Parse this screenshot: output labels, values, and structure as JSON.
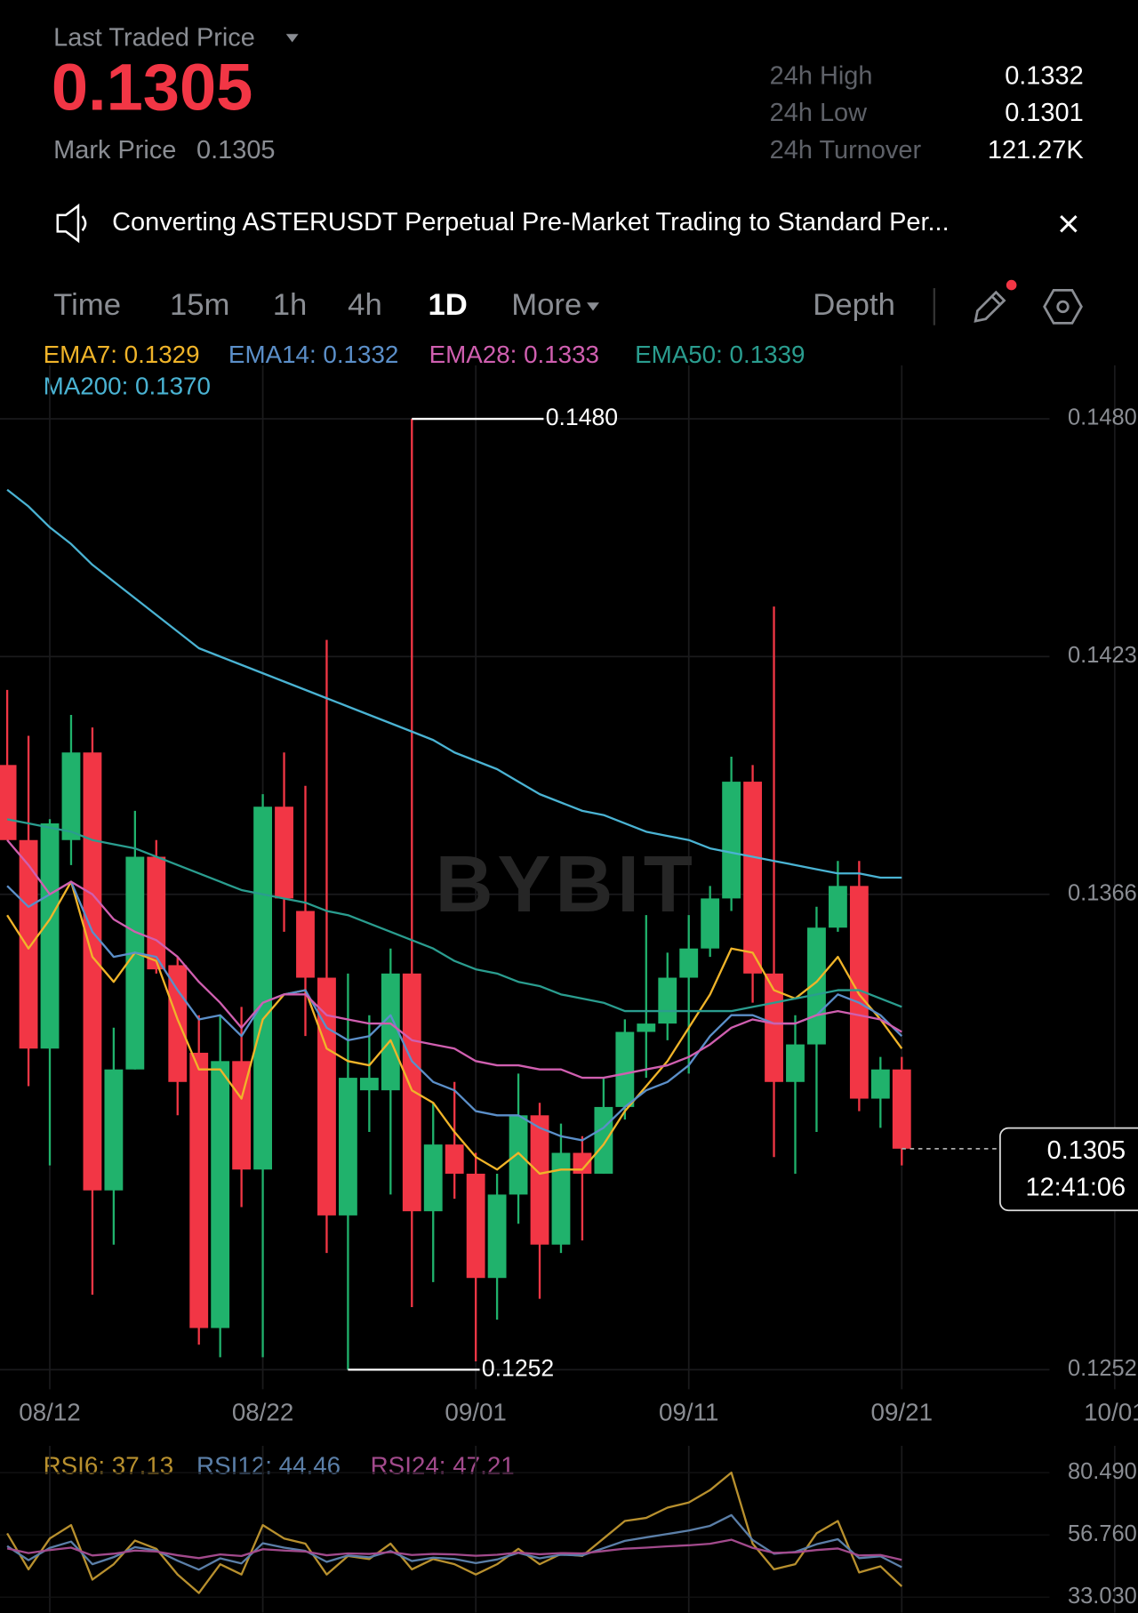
{
  "header": {
    "title": "Last Traded Price",
    "last_price": "0.1305",
    "mark_price_label": "Mark Price",
    "mark_price": "0.1305",
    "stats": [
      {
        "label": "24h High",
        "value": "0.1332"
      },
      {
        "label": "24h Low",
        "value": "0.1301"
      },
      {
        "label": "24h Turnover",
        "value": "121.27K"
      }
    ]
  },
  "announcement": "Converting ASTERUSDT Perpetual Pre-Market Trading to Standard Per...",
  "tabs": {
    "items": [
      "Time",
      "15m",
      "1h",
      "4h",
      "1D",
      "More"
    ],
    "active": "1D",
    "depth": "Depth"
  },
  "chart_data": [
    {
      "type": "candlestick",
      "x": [
        "08/10",
        "08/11",
        "08/12",
        "08/13",
        "08/14",
        "08/15",
        "08/16",
        "08/17",
        "08/18",
        "08/19",
        "08/20",
        "08/21",
        "08/22",
        "08/23",
        "08/24",
        "08/25",
        "08/26",
        "08/27",
        "08/28",
        "08/29",
        "08/30",
        "08/31",
        "09/01",
        "09/02",
        "09/03",
        "09/04",
        "09/05",
        "09/06",
        "09/07",
        "09/08",
        "09/09",
        "09/10",
        "09/11",
        "09/12",
        "09/13",
        "09/14",
        "09/15",
        "09/16",
        "09/17",
        "09/18",
        "09/19",
        "09/20",
        "09/21"
      ],
      "open": [
        0.1397,
        0.1379,
        0.1329,
        0.1379,
        0.14,
        0.1295,
        0.1324,
        0.1375,
        0.1349,
        0.1328,
        0.1262,
        0.1326,
        0.13,
        0.1387,
        0.1362,
        0.1346,
        0.1289,
        0.1319,
        0.1319,
        0.1347,
        0.129,
        0.1306,
        0.1299,
        0.1274,
        0.1294,
        0.1313,
        0.1282,
        0.1304,
        0.1299,
        0.1315,
        0.1333,
        0.1335,
        0.1346,
        0.1353,
        0.1365,
        0.1393,
        0.1347,
        0.1321,
        0.133,
        0.1358,
        0.1368,
        0.1317,
        0.1324
      ],
      "high": [
        0.1415,
        0.1404,
        0.1384,
        0.1409,
        0.1406,
        0.1334,
        0.1386,
        0.1379,
        0.1351,
        0.1337,
        0.1337,
        0.1339,
        0.139,
        0.14,
        0.1392,
        0.1427,
        0.1347,
        0.1337,
        0.1353,
        0.148,
        0.1316,
        0.1321,
        0.1304,
        0.1299,
        0.1323,
        0.1316,
        0.1311,
        0.1308,
        0.1322,
        0.1336,
        0.1361,
        0.1352,
        0.1361,
        0.1368,
        0.1399,
        0.1397,
        0.1435,
        0.1337,
        0.1363,
        0.1374,
        0.1374,
        0.1327,
        0.1327
      ],
      "low": [
        0.1379,
        0.132,
        0.1301,
        0.1373,
        0.127,
        0.1282,
        0.1324,
        0.1347,
        0.1313,
        0.1258,
        0.1255,
        0.1291,
        0.1255,
        0.1357,
        0.1332,
        0.128,
        0.1252,
        0.1309,
        0.1294,
        0.1267,
        0.1273,
        0.1293,
        0.1254,
        0.1264,
        0.1287,
        0.1269,
        0.128,
        0.1283,
        0.1299,
        0.1312,
        0.1322,
        0.1331,
        0.1323,
        0.1351,
        0.1362,
        0.134,
        0.1303,
        0.1299,
        0.1309,
        0.1357,
        0.1314,
        0.131,
        0.1301
      ],
      "close": [
        0.1379,
        0.1329,
        0.1383,
        0.14,
        0.1295,
        0.1324,
        0.1375,
        0.1348,
        0.1321,
        0.1262,
        0.1326,
        0.13,
        0.1387,
        0.1365,
        0.1346,
        0.1289,
        0.1322,
        0.1322,
        0.1347,
        0.129,
        0.1306,
        0.1299,
        0.1274,
        0.1294,
        0.1313,
        0.1282,
        0.1304,
        0.1299,
        0.1315,
        0.1333,
        0.1335,
        0.1346,
        0.1353,
        0.1365,
        0.1393,
        0.1347,
        0.1321,
        0.133,
        0.1358,
        0.1368,
        0.1317,
        0.1324,
        0.1305
      ],
      "up_color": "#20b26c",
      "down_color": "#f23645",
      "ylim": [
        0.1252,
        0.148
      ],
      "yticks": [
        {
          "value": 0.148,
          "label": "0.1480"
        },
        0.1423,
        0.1366,
        0.1252
      ],
      "xticks": [
        "08/12",
        "08/22",
        "09/01",
        "09/11",
        "09/21",
        "10/01"
      ],
      "grid": true,
      "watermark": "BYBIT",
      "annotations": {
        "high": {
          "value": 0.148,
          "label": "0.1480"
        },
        "low": 0.1252,
        "last": 0.1305,
        "countdown": "12:41:06"
      },
      "indicators": [
        {
          "name": "EMA7",
          "label": "EMA7: 0.1329",
          "color": "#f0b429",
          "values": [
            0.1361,
            0.1353,
            0.136,
            0.1369,
            0.1351,
            0.1345,
            0.1352,
            0.135,
            0.1336,
            0.1324,
            0.1324,
            0.1317,
            0.1336,
            0.1342,
            0.1343,
            0.1329,
            0.1326,
            0.1325,
            0.1331,
            0.1319,
            0.1316,
            0.1309,
            0.1303,
            0.13,
            0.1304,
            0.1299,
            0.13,
            0.13,
            0.1306,
            0.1314,
            0.132,
            0.1326,
            0.1334,
            0.1342,
            0.1353,
            0.1352,
            0.1343,
            0.1341,
            0.1345,
            0.1351,
            0.1342,
            0.1336,
            0.1329
          ]
        },
        {
          "name": "EMA14",
          "label": "EMA14: 0.1332",
          "color": "#5b8fc9",
          "values": [
            0.1368,
            0.1363,
            0.1366,
            0.1369,
            0.1357,
            0.1351,
            0.1352,
            0.1351,
            0.1343,
            0.1336,
            0.1337,
            0.1332,
            0.134,
            0.1342,
            0.1343,
            0.1334,
            0.1331,
            0.1332,
            0.1337,
            0.1326,
            0.1321,
            0.1319,
            0.1314,
            0.1313,
            0.1313,
            0.131,
            0.1308,
            0.1307,
            0.131,
            0.1315,
            0.1319,
            0.1321,
            0.1325,
            0.1332,
            0.1337,
            0.1337,
            0.1335,
            0.1335,
            0.1337,
            0.1342,
            0.134,
            0.1337,
            0.1332
          ]
        },
        {
          "name": "EMA28",
          "label": "EMA28: 0.1333",
          "color": "#d05fb0",
          "values": [
            0.1379,
            0.1373,
            0.1366,
            0.1369,
            0.1366,
            0.136,
            0.1357,
            0.1355,
            0.1351,
            0.1345,
            0.134,
            0.1334,
            0.134,
            0.1342,
            0.1342,
            0.1337,
            0.1336,
            0.1335,
            0.1335,
            0.1331,
            0.133,
            0.1329,
            0.1326,
            0.1325,
            0.1325,
            0.1324,
            0.1324,
            0.1322,
            0.1322,
            0.1323,
            0.1324,
            0.1325,
            0.1327,
            0.133,
            0.1334,
            0.1336,
            0.1335,
            0.1335,
            0.1337,
            0.1338,
            0.1337,
            0.1336,
            0.1333
          ]
        },
        {
          "name": "EMA50",
          "label": "EMA50: 0.1339",
          "color": "#2a9d8f",
          "values": [
            0.1384,
            0.1383,
            0.1382,
            0.1381,
            0.1379,
            0.1378,
            0.1377,
            0.1375,
            0.1373,
            0.1371,
            0.1369,
            0.1367,
            0.1366,
            0.1365,
            0.1364,
            0.1362,
            0.1361,
            0.1359,
            0.1357,
            0.1355,
            0.1353,
            0.135,
            0.1348,
            0.1347,
            0.1345,
            0.1344,
            0.1342,
            0.1341,
            0.134,
            0.1338,
            0.1338,
            0.1338,
            0.1338,
            0.1338,
            0.1338,
            0.1339,
            0.134,
            0.1341,
            0.1342,
            0.1343,
            0.1343,
            0.1341,
            0.1339
          ]
        },
        {
          "name": "MA200",
          "label": "MA200: 0.1370",
          "color": "#4ab3d3",
          "values": [
            0.1463,
            0.1459,
            0.1454,
            0.145,
            0.1445,
            0.1441,
            0.1437,
            0.1433,
            0.1429,
            0.1425,
            0.1423,
            0.1421,
            0.1419,
            0.1417,
            0.1415,
            0.1413,
            0.1411,
            0.1409,
            0.1407,
            0.1405,
            0.1403,
            0.14,
            0.1398,
            0.1396,
            0.1393,
            0.139,
            0.1388,
            0.1386,
            0.1385,
            0.1383,
            0.1381,
            0.138,
            0.1379,
            0.1377,
            0.1376,
            0.1375,
            0.1374,
            0.1373,
            0.1372,
            0.1371,
            0.1371,
            0.137,
            0.137
          ]
        }
      ]
    },
    {
      "type": "line",
      "ylim": [
        33.03,
        80.49
      ],
      "yticks": [
        {
          "value": 80.49,
          "label": "80.490"
        },
        {
          "value": 56.76,
          "label": "56.760"
        },
        {
          "value": 33.03,
          "label": "33.030"
        }
      ],
      "series": [
        {
          "name": "RSI6",
          "label": "RSI6: 37.13",
          "color": "#b8902e",
          "values": [
            57.35,
            43.62,
            55.39,
            60.49,
            39.7,
            45.58,
            54.6,
            51.47,
            41.66,
            34.6,
            45.58,
            41.66,
            60.49,
            55.39,
            53.43,
            41.66,
            48.72,
            47.55,
            53.43,
            43.62,
            47.55,
            45.58,
            41.66,
            45.58,
            51.47,
            45.58,
            49.51,
            48.72,
            55.39,
            62.06,
            63.23,
            67.16,
            69.12,
            73.82,
            80.49,
            53.43,
            43.62,
            45.58,
            57.35,
            62.06,
            42.45,
            44.8,
            37.13
          ]
        },
        {
          "name": "RSI12",
          "label": "RSI12: 44.46",
          "color": "#5b7fa8",
          "values": [
            52.5,
            47.1,
            51.8,
            54.2,
            45.6,
            48.3,
            52.1,
            50.8,
            46.9,
            43.5,
            47.8,
            45.9,
            53.6,
            51.9,
            50.7,
            46.5,
            48.9,
            48.2,
            50.6,
            46.8,
            48.1,
            47.6,
            46.0,
            47.4,
            49.9,
            47.8,
            49.2,
            48.9,
            51.7,
            54.5,
            55.8,
            57.1,
            58.4,
            60.2,
            64.3,
            54.8,
            49.6,
            50.3,
            53.2,
            55.1,
            47.9,
            48.6,
            44.46
          ]
        },
        {
          "name": "RSI24",
          "label": "RSI24: 47.21",
          "color": "#a24a8c",
          "values": [
            51.6,
            49.8,
            51.0,
            51.9,
            48.9,
            49.6,
            50.8,
            50.4,
            49.0,
            47.9,
            49.3,
            48.7,
            51.3,
            50.8,
            50.4,
            49.0,
            49.7,
            49.5,
            50.2,
            49.1,
            49.5,
            49.3,
            48.8,
            49.2,
            50.0,
            49.4,
            49.8,
            49.7,
            50.6,
            51.5,
            51.9,
            52.4,
            52.8,
            53.4,
            54.9,
            51.8,
            49.9,
            50.1,
            51.0,
            51.6,
            48.9,
            49.1,
            47.21
          ]
        }
      ]
    }
  ]
}
